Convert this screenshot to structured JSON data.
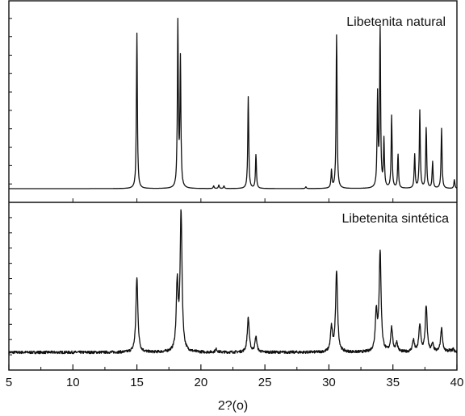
{
  "chart_data": {
    "type": "line",
    "xlabel": "2?(o)",
    "xlim": [
      5,
      40
    ],
    "x_ticks": [
      5,
      10,
      15,
      20,
      25,
      30,
      35,
      40
    ],
    "x_tick_labels": [
      "5",
      "10",
      "15",
      "20",
      "25",
      "30",
      "35",
      "40"
    ],
    "grid": false,
    "panels": [
      {
        "label": "Libetenita natural",
        "noise": false,
        "peaks": [
          {
            "x": 15.0,
            "h": 0.88
          },
          {
            "x": 18.2,
            "h": 0.93
          },
          {
            "x": 18.4,
            "h": 0.72
          },
          {
            "x": 21.0,
            "h": 0.015
          },
          {
            "x": 21.4,
            "h": 0.02
          },
          {
            "x": 21.8,
            "h": 0.015
          },
          {
            "x": 23.7,
            "h": 0.52
          },
          {
            "x": 24.3,
            "h": 0.19
          },
          {
            "x": 28.2,
            "h": 0.01
          },
          {
            "x": 30.2,
            "h": 0.1
          },
          {
            "x": 30.6,
            "h": 0.87
          },
          {
            "x": 33.8,
            "h": 0.52
          },
          {
            "x": 34.0,
            "h": 0.89
          },
          {
            "x": 34.3,
            "h": 0.27
          },
          {
            "x": 34.9,
            "h": 0.41
          },
          {
            "x": 35.4,
            "h": 0.19
          },
          {
            "x": 36.7,
            "h": 0.19
          },
          {
            "x": 37.1,
            "h": 0.44
          },
          {
            "x": 37.6,
            "h": 0.34
          },
          {
            "x": 38.1,
            "h": 0.15
          },
          {
            "x": 38.8,
            "h": 0.34
          },
          {
            "x": 39.8,
            "h": 0.05
          }
        ]
      },
      {
        "label": "Libetenita sintética",
        "noise": true,
        "peaks": [
          {
            "x": 15.0,
            "h": 0.5
          },
          {
            "x": 18.15,
            "h": 0.44
          },
          {
            "x": 18.45,
            "h": 0.92
          },
          {
            "x": 21.2,
            "h": 0.02
          },
          {
            "x": 23.7,
            "h": 0.23
          },
          {
            "x": 24.3,
            "h": 0.1
          },
          {
            "x": 30.2,
            "h": 0.16
          },
          {
            "x": 30.6,
            "h": 0.54
          },
          {
            "x": 33.7,
            "h": 0.26
          },
          {
            "x": 34.0,
            "h": 0.66
          },
          {
            "x": 34.9,
            "h": 0.16
          },
          {
            "x": 35.3,
            "h": 0.06
          },
          {
            "x": 36.6,
            "h": 0.08
          },
          {
            "x": 37.1,
            "h": 0.18
          },
          {
            "x": 37.6,
            "h": 0.3
          },
          {
            "x": 38.1,
            "h": 0.05
          },
          {
            "x": 38.8,
            "h": 0.16
          },
          {
            "x": 39.4,
            "h": 0.01
          },
          {
            "x": 39.7,
            "h": 0.02
          }
        ]
      }
    ]
  }
}
